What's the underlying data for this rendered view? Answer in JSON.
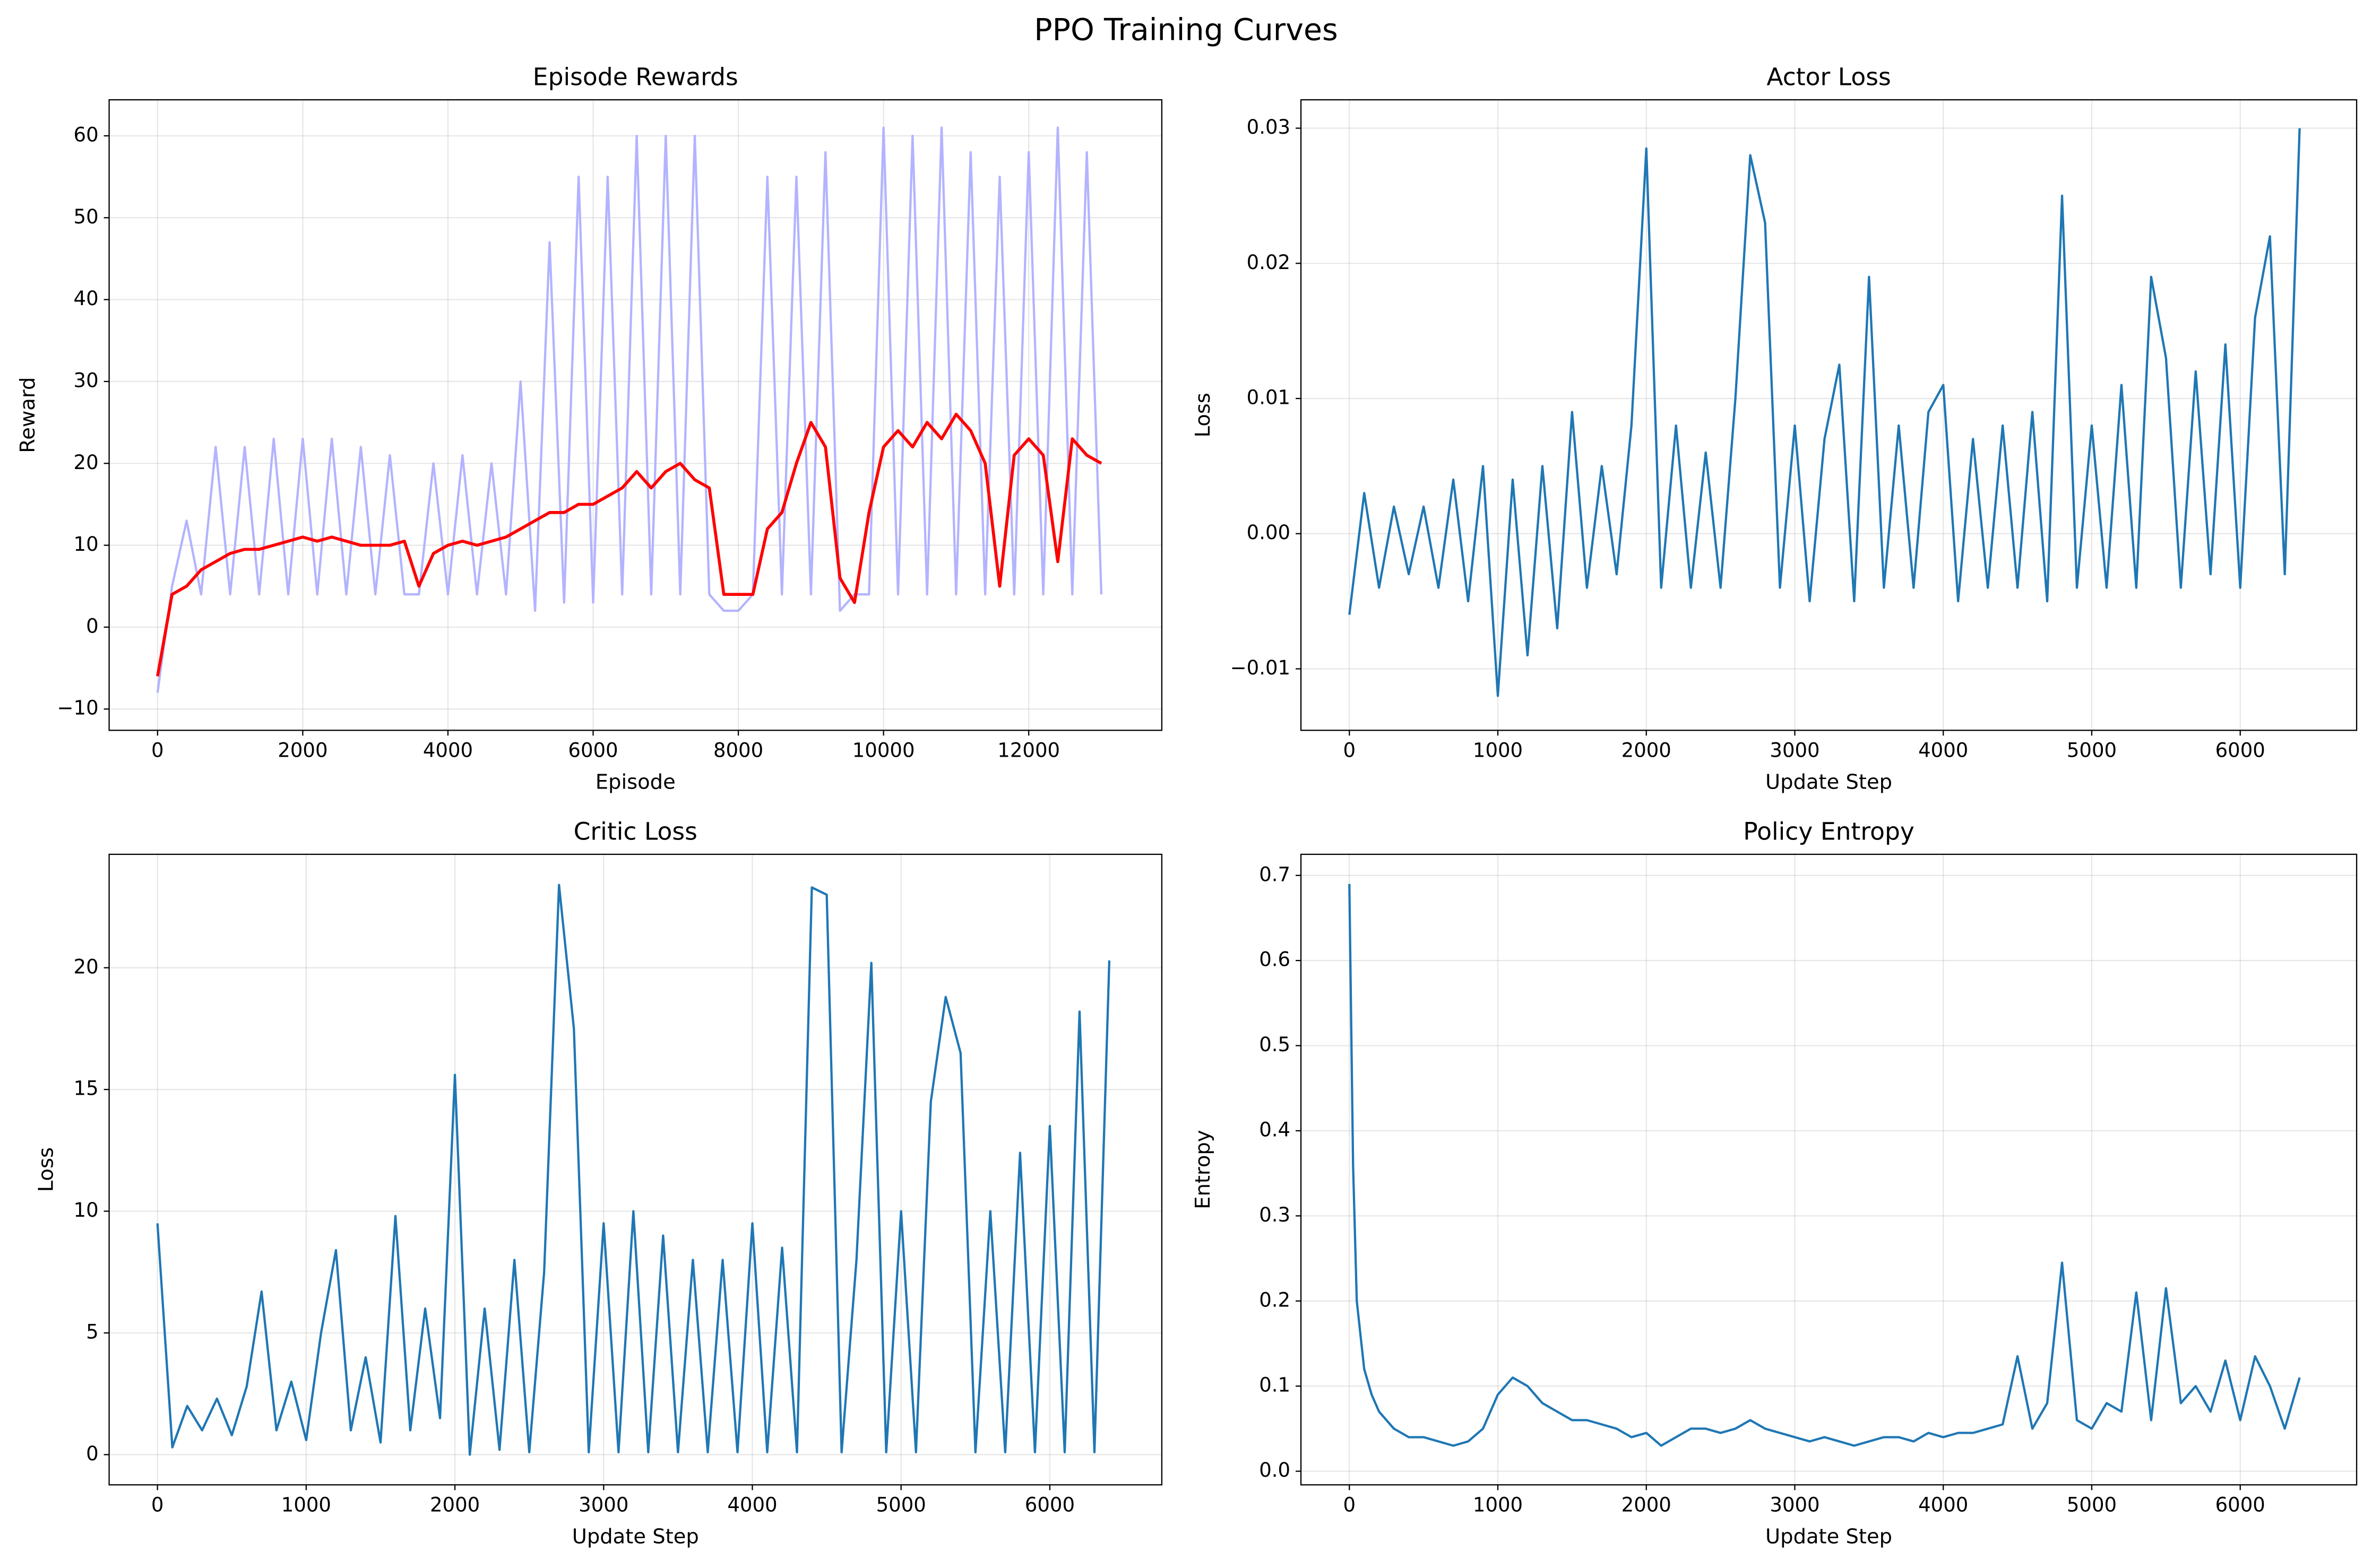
{
  "title": "PPO Training Curves",
  "chart_data": [
    {
      "type": "line",
      "title": "Episode Rewards",
      "xlabel": "Episode",
      "ylabel": "Reward",
      "x": [
        0,
        200,
        400,
        600,
        800,
        1000,
        1200,
        1400,
        1600,
        1800,
        2000,
        2200,
        2400,
        2600,
        2800,
        3000,
        3200,
        3400,
        3600,
        3800,
        4000,
        4200,
        4400,
        4600,
        4800,
        5000,
        5200,
        5400,
        5600,
        5800,
        6000,
        6200,
        6400,
        6600,
        6800,
        7000,
        7200,
        7400,
        7600,
        7800,
        8000,
        8200,
        8400,
        8600,
        8800,
        9000,
        9200,
        9400,
        9600,
        9800,
        10000,
        10200,
        10400,
        10600,
        10800,
        11000,
        11200,
        11400,
        11600,
        11800,
        12000,
        12200,
        12400,
        12600,
        12800,
        13000
      ],
      "series": [
        {
          "color": "#b3b3ff",
          "values": [
            -8,
            5,
            13,
            4,
            22,
            4,
            22,
            4,
            23,
            4,
            23,
            4,
            23,
            4,
            22,
            4,
            21,
            4,
            4,
            20,
            4,
            21,
            4,
            20,
            4,
            30,
            2,
            47,
            3,
            55,
            3,
            55,
            4,
            60,
            4,
            60,
            4,
            60,
            4,
            2,
            2,
            4,
            55,
            4,
            55,
            4,
            58,
            2,
            4,
            4,
            61,
            4,
            60,
            4,
            61,
            4,
            58,
            4,
            55,
            4,
            58,
            4,
            61,
            4,
            58,
            4
          ]
        },
        {
          "color": "#ff0000",
          "values": [
            -6,
            4,
            5,
            7,
            8,
            9,
            9.5,
            9.5,
            10,
            10.5,
            11,
            10.5,
            11,
            10.5,
            10,
            10,
            10,
            10.5,
            5,
            9,
            10,
            10.5,
            10,
            10.5,
            11,
            12,
            13,
            14,
            14,
            15,
            15,
            16,
            17,
            19,
            17,
            19,
            20,
            18,
            17,
            4,
            4,
            4,
            12,
            14,
            20,
            25,
            22,
            6,
            3,
            14,
            22,
            24,
            22,
            25,
            23,
            26,
            24,
            20,
            5,
            21,
            23,
            21,
            8,
            23,
            21,
            20
          ]
        }
      ],
      "xlim": [
        -667,
        13833
      ],
      "ylim": [
        -12.6,
        64.4
      ],
      "xticks": [
        0,
        2000,
        4000,
        6000,
        8000,
        10000,
        12000
      ],
      "yticks": [
        {
          "value": -10,
          "label": "−10"
        },
        0,
        10,
        20,
        30,
        40,
        50,
        60
      ],
      "grid": true
    },
    {
      "type": "line",
      "title": "Actor Loss",
      "xlabel": "Update Step",
      "ylabel": "Loss",
      "x": [
        0,
        100,
        200,
        300,
        400,
        500,
        600,
        700,
        800,
        900,
        1000,
        1100,
        1200,
        1300,
        1400,
        1500,
        1600,
        1700,
        1800,
        1900,
        2000,
        2100,
        2200,
        2300,
        2400,
        2500,
        2600,
        2700,
        2800,
        2900,
        3000,
        3100,
        3200,
        3300,
        3400,
        3500,
        3600,
        3700,
        3800,
        3900,
        4000,
        4100,
        4200,
        4300,
        4400,
        4500,
        4600,
        4700,
        4800,
        4900,
        5000,
        5100,
        5200,
        5300,
        5400,
        5500,
        5600,
        5700,
        5800,
        5900,
        6000,
        6100,
        6200,
        6300,
        6400
      ],
      "color": "#1f77b4",
      "values": [
        -0.006,
        0.003,
        -0.004,
        0.002,
        -0.003,
        0.002,
        -0.004,
        0.004,
        -0.005,
        0.005,
        -0.012,
        0.004,
        -0.009,
        0.005,
        -0.007,
        0.009,
        -0.004,
        0.005,
        -0.003,
        0.008,
        0.0285,
        -0.004,
        0.008,
        -0.004,
        0.006,
        -0.004,
        0.01,
        0.028,
        0.023,
        -0.004,
        0.008,
        -0.005,
        0.007,
        0.0125,
        -0.005,
        0.019,
        -0.004,
        0.008,
        -0.004,
        0.009,
        0.011,
        -0.005,
        0.007,
        -0.004,
        0.008,
        -0.004,
        0.009,
        -0.005,
        0.025,
        -0.004,
        0.008,
        -0.004,
        0.011,
        -0.004,
        0.019,
        0.013,
        -0.004,
        0.012,
        -0.003,
        0.014,
        -0.004,
        0.016,
        0.022,
        -0.003,
        0.03
      ],
      "xlim": [
        -326,
        6784
      ],
      "ylim": [
        -0.01455,
        0.0321
      ],
      "xticks": [
        0,
        1000,
        2000,
        3000,
        4000,
        5000,
        6000
      ],
      "yticks": [
        {
          "value": -0.01,
          "label": "−0.01"
        },
        {
          "value": 0,
          "label": "0.00"
        },
        0.01,
        0.02,
        0.03
      ],
      "grid": true
    },
    {
      "type": "line",
      "title": "Critic Loss",
      "xlabel": "Update Step",
      "ylabel": "Loss",
      "x": [
        0,
        100,
        200,
        300,
        400,
        500,
        600,
        700,
        800,
        900,
        1000,
        1100,
        1200,
        1300,
        1400,
        1500,
        1600,
        1700,
        1800,
        1900,
        2000,
        2100,
        2200,
        2300,
        2400,
        2500,
        2600,
        2700,
        2800,
        2900,
        3000,
        3100,
        3200,
        3300,
        3400,
        3500,
        3600,
        3700,
        3800,
        3900,
        4000,
        4100,
        4200,
        4300,
        4400,
        4500,
        4600,
        4700,
        4800,
        4900,
        5000,
        5100,
        5200,
        5300,
        5400,
        5500,
        5600,
        5700,
        5800,
        5900,
        6000,
        6100,
        6200,
        6300,
        6400
      ],
      "color": "#1f77b4",
      "values": [
        9.5,
        0.3,
        2,
        1,
        2.3,
        0.8,
        2.8,
        6.7,
        1,
        3,
        0.6,
        5,
        8.4,
        1,
        4,
        0.5,
        9.8,
        1,
        6,
        1.5,
        15.6,
        0,
        6,
        0.2,
        8,
        0.1,
        7.5,
        23.4,
        17.5,
        0.1,
        9.5,
        0.1,
        10,
        0.1,
        9,
        0.1,
        8,
        0.1,
        8,
        0.1,
        9.5,
        0.1,
        8.5,
        0.1,
        23.3,
        23,
        0.1,
        8,
        20.2,
        0.1,
        10,
        0.1,
        14.5,
        18.8,
        16.5,
        0.1,
        10,
        0.1,
        12.4,
        0.1,
        13.5,
        0.1,
        18.2,
        0.1,
        20.3
      ],
      "xlim": [
        -325,
        6753
      ],
      "ylim": [
        -1.24,
        24.66
      ],
      "xticks": [
        0,
        1000,
        2000,
        3000,
        4000,
        5000,
        6000
      ],
      "yticks": [
        0,
        5,
        10,
        15,
        20
      ],
      "grid": true
    },
    {
      "type": "line",
      "title": "Policy Entropy",
      "xlabel": "Update Step",
      "ylabel": "Entropy",
      "x": [
        0,
        25,
        50,
        100,
        150,
        200,
        300,
        400,
        500,
        600,
        700,
        800,
        900,
        1000,
        1100,
        1200,
        1300,
        1400,
        1500,
        1600,
        1700,
        1800,
        1900,
        2000,
        2100,
        2200,
        2300,
        2400,
        2500,
        2600,
        2700,
        2800,
        2900,
        3000,
        3100,
        3200,
        3300,
        3400,
        3500,
        3600,
        3700,
        3800,
        3900,
        4000,
        4100,
        4200,
        4300,
        4400,
        4500,
        4600,
        4700,
        4800,
        4900,
        5000,
        5100,
        5200,
        5300,
        5400,
        5500,
        5600,
        5700,
        5800,
        5900,
        6000,
        6100,
        6200,
        6300,
        6400
      ],
      "color": "#1f77b4",
      "values": [
        0.69,
        0.36,
        0.2,
        0.12,
        0.09,
        0.07,
        0.05,
        0.04,
        0.04,
        0.035,
        0.03,
        0.035,
        0.05,
        0.09,
        0.11,
        0.1,
        0.08,
        0.07,
        0.06,
        0.06,
        0.055,
        0.05,
        0.04,
        0.045,
        0.03,
        0.04,
        0.05,
        0.05,
        0.045,
        0.05,
        0.06,
        0.05,
        0.045,
        0.04,
        0.035,
        0.04,
        0.035,
        0.03,
        0.035,
        0.04,
        0.04,
        0.035,
        0.045,
        0.04,
        0.045,
        0.045,
        0.05,
        0.055,
        0.135,
        0.05,
        0.08,
        0.245,
        0.06,
        0.05,
        0.08,
        0.07,
        0.21,
        0.06,
        0.215,
        0.08,
        0.1,
        0.07,
        0.13,
        0.06,
        0.135,
        0.1,
        0.05,
        0.11
      ],
      "xlim": [
        -326,
        6784
      ],
      "ylim": [
        -0.016,
        0.7248
      ],
      "xticks": [
        0,
        1000,
        2000,
        3000,
        4000,
        5000,
        6000
      ],
      "yticks": [
        {
          "value": 0,
          "label": "0.0"
        },
        0.1,
        0.2,
        0.3,
        0.4,
        0.5,
        0.6,
        0.7
      ],
      "grid": true
    }
  ]
}
